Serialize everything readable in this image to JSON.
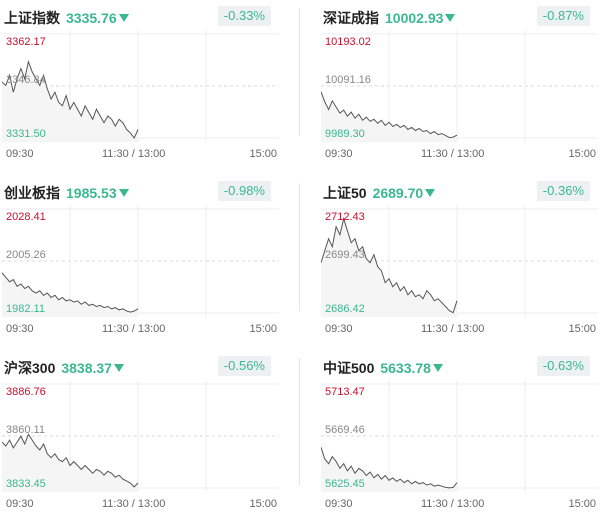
{
  "panels": [
    {
      "name": "上证指数",
      "price": "3335.76",
      "change": "-0.33%",
      "high": "3362.17",
      "mid": "3346.84",
      "low": "3331.50",
      "series": [
        3348,
        3347,
        3350,
        3345,
        3349,
        3352,
        3349,
        3354,
        3351,
        3349,
        3347,
        3350,
        3346,
        3343,
        3345,
        3342,
        3341,
        3344,
        3340,
        3342,
        3340,
        3338,
        3341,
        3339,
        3337,
        3340,
        3338,
        3336,
        3338,
        3337,
        3335,
        3337,
        3336,
        3334,
        3333,
        3331.5,
        3334
      ]
    },
    {
      "name": "深证成指",
      "price": "10002.93",
      "change": "-0.87%",
      "high": "10193.02",
      "mid": "10091.16",
      "low": "9989.30",
      "series": [
        10080,
        10060,
        10045,
        10062,
        10050,
        10038,
        10044,
        10032,
        10040,
        10028,
        10036,
        10024,
        10030,
        10022,
        10026,
        10018,
        10024,
        10014,
        10020,
        10012,
        10016,
        10010,
        10014,
        10006,
        10010,
        10004,
        10008,
        10002,
        10004,
        9998,
        10002,
        9996,
        9998,
        9994,
        9990,
        9991,
        9995
      ]
    },
    {
      "name": "创业板指",
      "price": "1985.53",
      "change": "-0.98%",
      "high": "2028.41",
      "mid": "2005.26",
      "low": "1982.11",
      "series": [
        2000,
        1998,
        1996,
        1997,
        1994,
        1995,
        1993,
        1994,
        1992,
        1991,
        1992,
        1990,
        1991,
        1989,
        1990,
        1988,
        1989,
        1987.5,
        1988,
        1987,
        1987.5,
        1986,
        1987,
        1985.5,
        1986,
        1985,
        1985.5,
        1984.5,
        1985,
        1984,
        1984.5,
        1983.5,
        1984,
        1983,
        1982.5,
        1983,
        1984
      ]
    },
    {
      "name": "上证50",
      "price": "2689.70",
      "change": "-0.36%",
      "high": "2712.43",
      "mid": "2699.43",
      "low": "2686.42",
      "series": [
        2699,
        2702,
        2705,
        2703,
        2708,
        2706,
        2710,
        2707,
        2704,
        2705,
        2702,
        2703,
        2700,
        2699,
        2701,
        2698,
        2697,
        2694,
        2695,
        2693,
        2694,
        2692,
        2693,
        2691,
        2692,
        2690.5,
        2691,
        2690,
        2692,
        2691,
        2689.5,
        2690,
        2689,
        2688,
        2687,
        2686.5,
        2689.5
      ]
    },
    {
      "name": "沪深300",
      "price": "3838.37",
      "change": "-0.56%",
      "high": "3886.76",
      "mid": "3860.11",
      "low": "3833.45",
      "series": [
        3857,
        3855,
        3858,
        3854,
        3857,
        3860,
        3856,
        3861,
        3858,
        3855,
        3853,
        3856,
        3851,
        3849,
        3851,
        3848,
        3847,
        3849,
        3845,
        3847,
        3845,
        3843,
        3845,
        3843,
        3841,
        3843,
        3842,
        3840,
        3842,
        3841,
        3839,
        3840,
        3838,
        3837,
        3836,
        3834,
        3836
      ]
    },
    {
      "name": "中证500",
      "price": "5633.78",
      "change": "-0.63%",
      "high": "5713.47",
      "mid": "5669.46",
      "low": "5625.45",
      "series": [
        5660,
        5650,
        5646,
        5652,
        5648,
        5642,
        5646,
        5640,
        5644,
        5638,
        5642,
        5640,
        5636,
        5639,
        5634,
        5637,
        5633,
        5636,
        5632,
        5634,
        5631,
        5633,
        5630,
        5632,
        5629,
        5631,
        5629,
        5630,
        5628,
        5629,
        5627,
        5628,
        5627,
        5626,
        5625.5,
        5626,
        5630
      ]
    }
  ],
  "times": [
    "09:30",
    "11:30 / 13:00",
    "15:00"
  ],
  "colors": {
    "up": "#c8102e",
    "down": "#3bb890",
    "line": "#555555",
    "grid": "#e6e6e6"
  }
}
